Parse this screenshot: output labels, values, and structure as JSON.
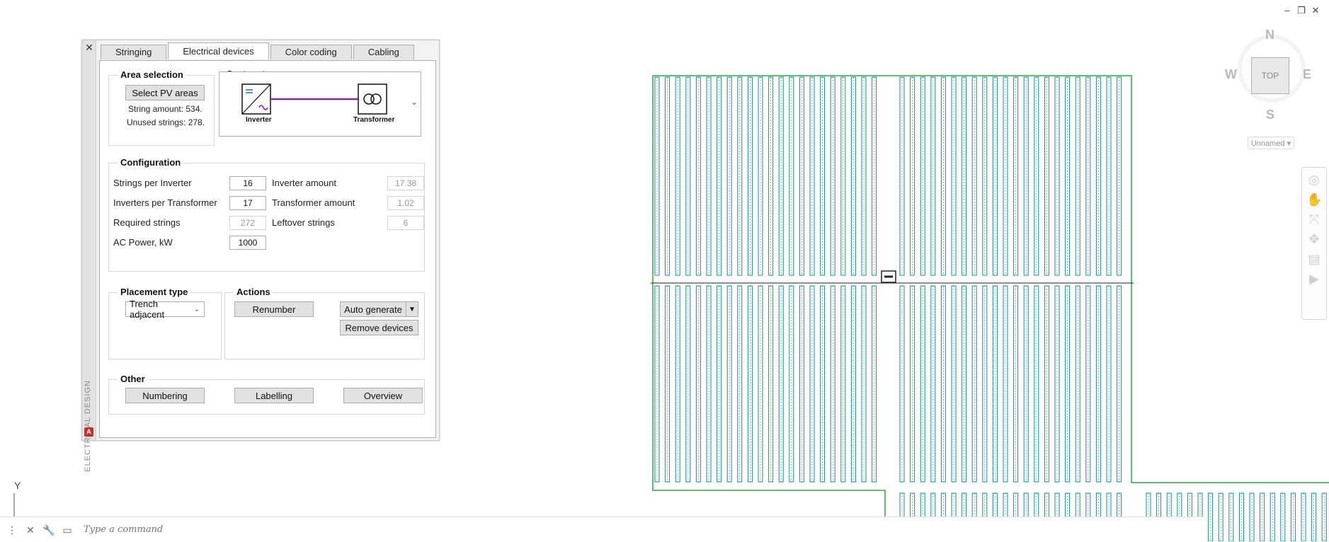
{
  "window_controls": {
    "minimize": "–",
    "restore": "❐",
    "close": "✕"
  },
  "viewcube": {
    "north": "N",
    "south": "S",
    "east": "E",
    "west": "W",
    "face": "TOP",
    "ucs_menu": "Unnamed ▾"
  },
  "panel": {
    "vertical_title": "ELECTRICAL DESIGN",
    "logo": "A",
    "close": "✕",
    "tabs": [
      {
        "label": "Stringing"
      },
      {
        "label": "Electrical devices"
      },
      {
        "label": "Color coding"
      },
      {
        "label": "Cabling"
      }
    ],
    "area_selection": {
      "title": "Area selection",
      "select_button": "Select PV areas",
      "string_amount": "String amount: 534.",
      "unused_strings": "Unused strings: 278."
    },
    "system_type": {
      "title": "System type",
      "device1": "Inverter",
      "device2": "Transformer",
      "link_color": "#a400c8"
    },
    "configuration": {
      "title": "Configuration",
      "strings_per_inverter_label": "Strings per Inverter",
      "strings_per_inverter": "16",
      "inverters_per_transformer_label": "Inverters per Transformer",
      "inverters_per_transformer": "17",
      "required_strings_label": "Required strings",
      "required_strings": "272",
      "ac_power_label": "AC Power, kW",
      "ac_power": "1000",
      "inverter_amount_label": "Inverter amount",
      "inverter_amount": "17.38",
      "transformer_amount_label": "Transformer amount",
      "transformer_amount": "1.02",
      "leftover_strings_label": "Leftover strings",
      "leftover_strings": "6"
    },
    "placement": {
      "title": "Placement type",
      "value": "Trench adjacent"
    },
    "actions": {
      "title": "Actions",
      "renumber": "Renumber",
      "auto_generate": "Auto generate",
      "remove_devices": "Remove devices"
    },
    "other": {
      "title": "Other",
      "numbering": "Numbering",
      "labelling": "Labelling",
      "overview": "Overview"
    }
  },
  "ucs": {
    "y_axis": "Y"
  },
  "command_line": {
    "placeholder": "Type a command"
  },
  "drawing": {
    "boundary_color": "#2fa84a",
    "row_color": "#1a8a9a",
    "trench_color": "#222222"
  }
}
